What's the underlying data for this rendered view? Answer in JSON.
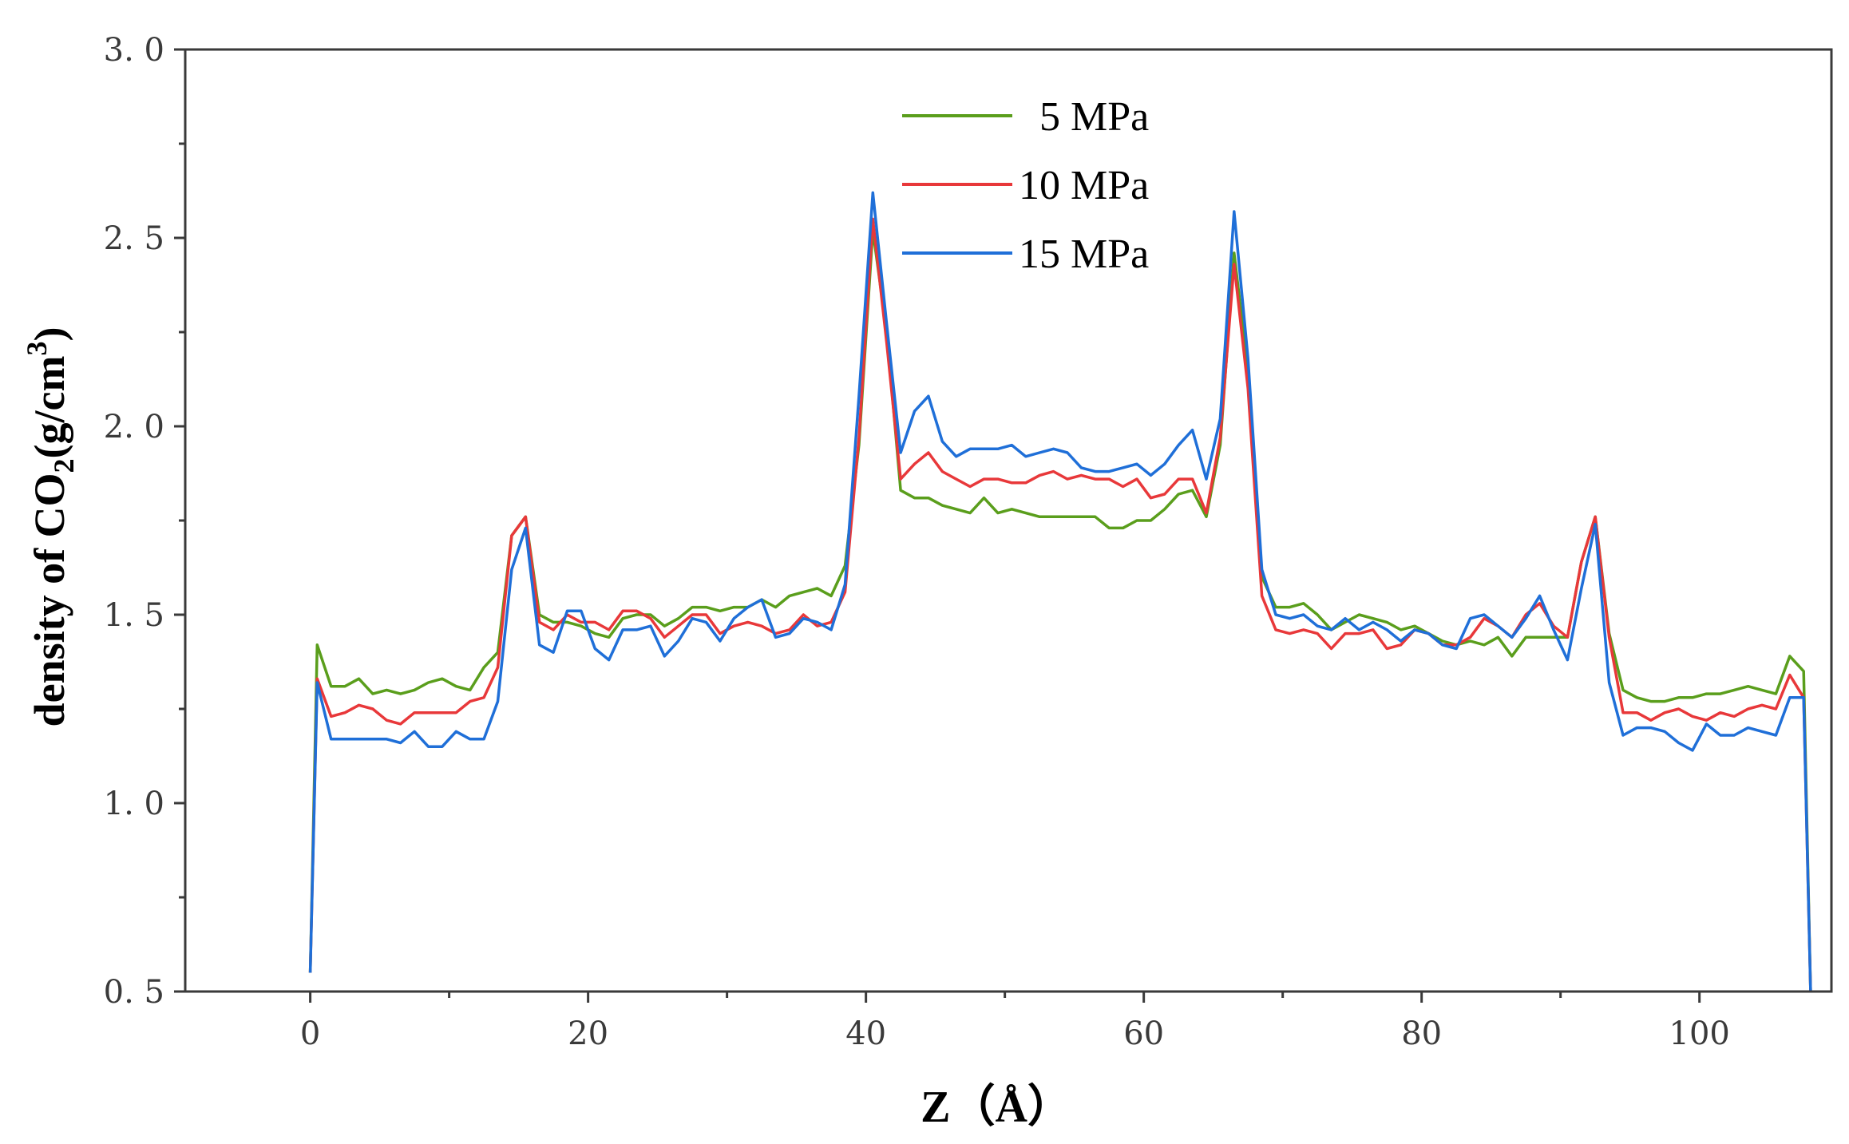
{
  "chart_data": {
    "type": "line",
    "title": "",
    "xlabel": "Z（Å）",
    "ylabel_parts": {
      "prefix": "density of CO",
      "sub": "2",
      "mid": "(g/cm",
      "sup": "3",
      "suffix": ")"
    },
    "xlim": [
      -9,
      109.5
    ],
    "ylim": [
      0.5,
      3.0
    ],
    "xticks": [
      0,
      20,
      40,
      60,
      80,
      100
    ],
    "xtick_labels": [
      "0",
      "20",
      "40",
      "60",
      "80",
      "100"
    ],
    "xminor": [
      10,
      30,
      50,
      70,
      90
    ],
    "yticks": [
      0.5,
      1.0,
      1.5,
      2.0,
      2.5,
      3.0
    ],
    "ytick_labels": [
      "0. 5",
      "1. 0",
      "1. 5",
      "2. 0",
      "2. 5",
      "3. 0"
    ],
    "yminor": [
      0.75,
      1.25,
      1.75,
      2.25,
      2.75
    ],
    "grid": false,
    "legend_position": "top-center",
    "x": [
      0,
      0.5,
      1.5,
      2.5,
      3.5,
      4.5,
      5.5,
      6.5,
      7.5,
      8.5,
      9.5,
      10.5,
      11.5,
      12.5,
      13.5,
      14.5,
      15.5,
      16.5,
      17.5,
      18.5,
      19.5,
      20.5,
      21.5,
      22.5,
      23.5,
      24.5,
      25.5,
      26.5,
      27.5,
      28.5,
      29.5,
      30.5,
      31.5,
      32.5,
      33.5,
      34.5,
      35.5,
      36.5,
      37.5,
      38.5,
      39.5,
      40.5,
      41.5,
      42.5,
      43.5,
      44.5,
      45.5,
      46.5,
      47.5,
      48.5,
      49.5,
      50.5,
      51.5,
      52.5,
      53.5,
      54.5,
      55.5,
      56.5,
      57.5,
      58.5,
      59.5,
      60.5,
      61.5,
      62.5,
      63.5,
      64.5,
      65.5,
      66.5,
      67.5,
      68.5,
      69.5,
      70.5,
      71.5,
      72.5,
      73.5,
      74.5,
      75.5,
      76.5,
      77.5,
      78.5,
      79.5,
      80.5,
      81.5,
      82.5,
      83.5,
      84.5,
      85.5,
      86.5,
      87.5,
      88.5,
      89.5,
      90.5,
      91.5,
      92.5,
      93.5,
      94.5,
      95.5,
      96.5,
      97.5,
      98.5,
      99.5,
      100.5,
      101.5,
      102.5,
      103.5,
      104.5,
      105.5,
      106.5,
      107.5,
      108.0
    ],
    "series": [
      {
        "name": "5 MPa",
        "color": "#5a9e1c",
        "values": [
          0.55,
          1.42,
          1.31,
          1.31,
          1.33,
          1.29,
          1.3,
          1.29,
          1.3,
          1.32,
          1.33,
          1.31,
          1.3,
          1.36,
          1.4,
          1.71,
          1.76,
          1.5,
          1.48,
          1.48,
          1.47,
          1.45,
          1.44,
          1.49,
          1.5,
          1.5,
          1.47,
          1.49,
          1.52,
          1.52,
          1.51,
          1.52,
          1.52,
          1.54,
          1.52,
          1.55,
          1.56,
          1.57,
          1.55,
          1.63,
          1.95,
          2.52,
          2.25,
          1.83,
          1.81,
          1.81,
          1.79,
          1.78,
          1.77,
          1.81,
          1.77,
          1.78,
          1.77,
          1.76,
          1.76,
          1.76,
          1.76,
          1.76,
          1.73,
          1.73,
          1.75,
          1.75,
          1.78,
          1.82,
          1.83,
          1.76,
          1.95,
          2.46,
          2.15,
          1.6,
          1.52,
          1.52,
          1.53,
          1.5,
          1.46,
          1.48,
          1.5,
          1.49,
          1.48,
          1.46,
          1.47,
          1.45,
          1.43,
          1.42,
          1.43,
          1.42,
          1.44,
          1.39,
          1.44,
          1.44,
          1.44,
          1.44,
          1.64,
          1.76,
          1.45,
          1.3,
          1.28,
          1.27,
          1.27,
          1.28,
          1.28,
          1.29,
          1.29,
          1.3,
          1.31,
          1.3,
          1.29,
          1.39,
          1.35,
          0.5
        ]
      },
      {
        "name": "10 MPa",
        "color": "#e8383a",
        "values": [
          0.55,
          1.33,
          1.23,
          1.24,
          1.26,
          1.25,
          1.22,
          1.21,
          1.24,
          1.24,
          1.24,
          1.24,
          1.27,
          1.28,
          1.36,
          1.71,
          1.76,
          1.48,
          1.46,
          1.5,
          1.48,
          1.48,
          1.46,
          1.51,
          1.51,
          1.49,
          1.44,
          1.47,
          1.5,
          1.5,
          1.45,
          1.47,
          1.48,
          1.47,
          1.45,
          1.46,
          1.5,
          1.47,
          1.48,
          1.56,
          1.97,
          2.55,
          2.22,
          1.86,
          1.9,
          1.93,
          1.88,
          1.86,
          1.84,
          1.86,
          1.86,
          1.85,
          1.85,
          1.87,
          1.88,
          1.86,
          1.87,
          1.86,
          1.86,
          1.84,
          1.86,
          1.81,
          1.82,
          1.86,
          1.86,
          1.77,
          1.97,
          2.43,
          2.1,
          1.55,
          1.46,
          1.45,
          1.46,
          1.45,
          1.41,
          1.45,
          1.45,
          1.46,
          1.41,
          1.42,
          1.46,
          1.45,
          1.42,
          1.42,
          1.44,
          1.49,
          1.47,
          1.44,
          1.5,
          1.53,
          1.47,
          1.44,
          1.64,
          1.76,
          1.44,
          1.24,
          1.24,
          1.22,
          1.24,
          1.25,
          1.23,
          1.22,
          1.24,
          1.23,
          1.25,
          1.26,
          1.25,
          1.34,
          1.28,
          0.5
        ]
      },
      {
        "name": "15 MPa",
        "color": "#1f6fd8",
        "values": [
          0.55,
          1.32,
          1.17,
          1.17,
          1.17,
          1.17,
          1.17,
          1.16,
          1.19,
          1.15,
          1.15,
          1.19,
          1.17,
          1.17,
          1.27,
          1.62,
          1.73,
          1.42,
          1.4,
          1.51,
          1.51,
          1.41,
          1.38,
          1.46,
          1.46,
          1.47,
          1.39,
          1.43,
          1.49,
          1.48,
          1.43,
          1.49,
          1.52,
          1.54,
          1.44,
          1.45,
          1.49,
          1.48,
          1.46,
          1.58,
          2.08,
          2.62,
          2.27,
          1.93,
          2.04,
          2.08,
          1.96,
          1.92,
          1.94,
          1.94,
          1.94,
          1.95,
          1.92,
          1.93,
          1.94,
          1.93,
          1.89,
          1.88,
          1.88,
          1.89,
          1.9,
          1.87,
          1.9,
          1.95,
          1.99,
          1.86,
          2.02,
          2.57,
          2.18,
          1.62,
          1.5,
          1.49,
          1.5,
          1.47,
          1.46,
          1.49,
          1.46,
          1.48,
          1.46,
          1.43,
          1.46,
          1.45,
          1.42,
          1.41,
          1.49,
          1.5,
          1.47,
          1.44,
          1.49,
          1.55,
          1.46,
          1.38,
          1.57,
          1.74,
          1.32,
          1.18,
          1.2,
          1.2,
          1.19,
          1.16,
          1.14,
          1.21,
          1.18,
          1.18,
          1.2,
          1.19,
          1.18,
          1.28,
          1.28,
          0.5
        ]
      }
    ]
  }
}
